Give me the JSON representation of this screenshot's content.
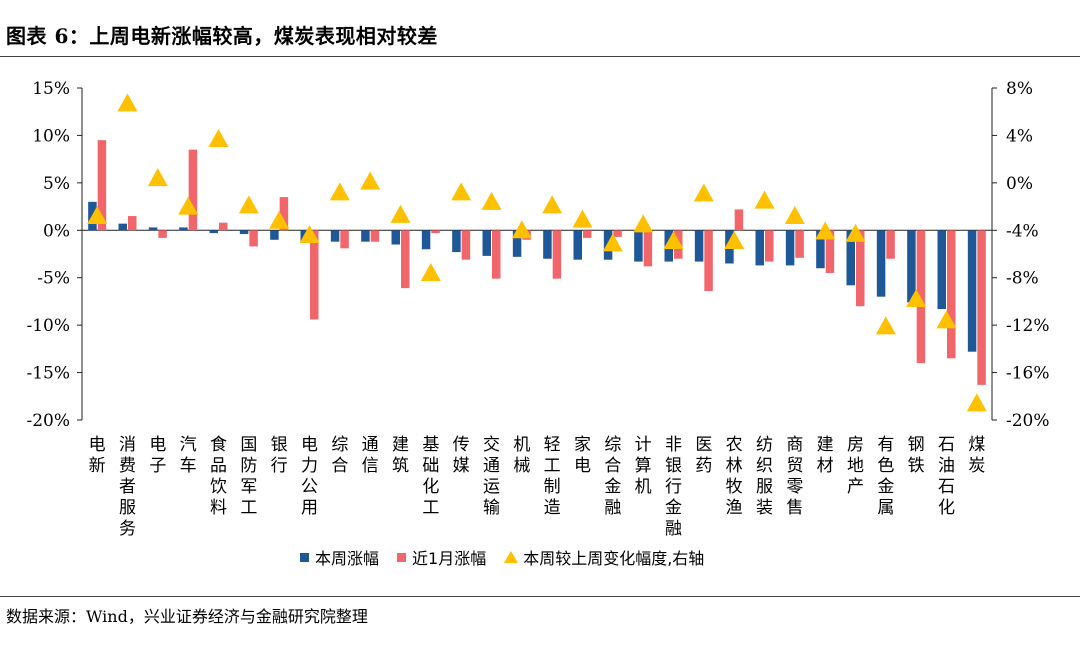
{
  "title": "图表 6：上周电新涨幅较高，煤炭表现相对较差",
  "source": "数据来源：Wind，兴业证券经济与金融研究院整理",
  "legend": {
    "weekly": "本周涨幅",
    "monthly": "近1月涨幅",
    "change": "本周较上周变化幅度,右轴"
  },
  "colors": {
    "weekly": "#1F5896",
    "monthly": "#F0666B",
    "change": "#FFC000"
  },
  "chart_data": {
    "type": "bar",
    "categories": [
      "电新",
      "消费者服务",
      "电子",
      "汽车",
      "食品饮料",
      "国防军工",
      "银行",
      "电力公用",
      "综合",
      "通信",
      "建筑",
      "基础化工",
      "传媒",
      "交通运输",
      "机械",
      "轻工制造",
      "家电",
      "综合金融",
      "计算机",
      "非银行金融",
      "医药",
      "农林牧渔",
      "纺织服装",
      "商贸零售",
      "建材",
      "房地产",
      "有色金属",
      "钢铁",
      "石油石化",
      "煤炭"
    ],
    "series": [
      {
        "name": "本周涨幅",
        "axis": "left",
        "values": [
          3.0,
          0.7,
          0.3,
          0.3,
          -0.3,
          -0.4,
          -1.0,
          -1.2,
          -1.2,
          -1.2,
          -1.5,
          -2.0,
          -2.3,
          -2.7,
          -2.8,
          -3.0,
          -3.1,
          -3.1,
          -3.3,
          -3.3,
          -3.3,
          -3.5,
          -3.7,
          -3.7,
          -4.0,
          -5.8,
          -7.0,
          -7.6,
          -8.3,
          -12.8
        ]
      },
      {
        "name": "近1月涨幅",
        "axis": "left",
        "values": [
          9.5,
          1.5,
          -0.8,
          8.5,
          0.8,
          -1.7,
          3.5,
          -9.4,
          -1.9,
          -1.2,
          -6.1,
          -0.3,
          -3.1,
          -5.1,
          -1.0,
          -5.1,
          -0.8,
          -0.7,
          -3.8,
          -3.0,
          -6.4,
          2.2,
          -3.3,
          -2.9,
          -4.5,
          -8.0,
          -3.0,
          -14.0,
          -13.5,
          -16.3
        ]
      },
      {
        "name": "本周较上周变化幅度,右轴",
        "axis": "right",
        "values": [
          -2.8,
          6.7,
          0.4,
          -2.0,
          3.7,
          -1.9,
          -3.2,
          -4.4,
          -0.8,
          0.1,
          -2.7,
          -7.6,
          -0.8,
          -1.6,
          -4.0,
          -1.9,
          -3.1,
          -5.1,
          -3.5,
          -4.9,
          -0.9,
          -4.9,
          -1.5,
          -2.8,
          -4.1,
          -4.3,
          -12.1,
          -9.8,
          -11.6,
          -18.6
        ]
      }
    ],
    "left_axis": {
      "ylim": [
        -20,
        15
      ],
      "ticks": [
        15,
        10,
        5,
        0,
        -5,
        -10,
        -15,
        -20
      ],
      "tick_labels": [
        "15%",
        "10%",
        "5%",
        "0%",
        "-5%",
        "-10%",
        "-15%",
        "-20%"
      ]
    },
    "right_axis": {
      "ylim": [
        -20,
        8
      ],
      "ticks": [
        8,
        4,
        0,
        -4,
        -8,
        -12,
        -16,
        -20
      ],
      "tick_labels": [
        "8%",
        "4%",
        "0%",
        "-4%",
        "-8%",
        "-12%",
        "-16%",
        "-20%"
      ]
    },
    "legend_position": "bottom",
    "grid": false
  }
}
